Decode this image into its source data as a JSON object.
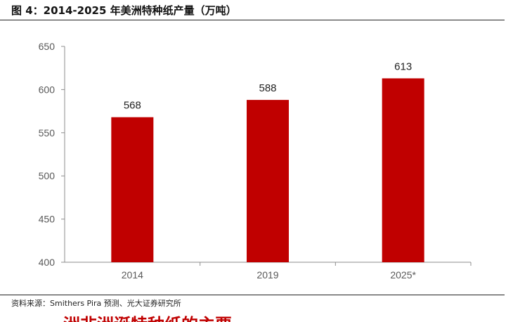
{
  "figure": {
    "title": "图 4：2014-2025 年美洲特种纸产量（万吨）",
    "source": "资料来源：Smithers Pira 预测、光大证券研究所",
    "cut_heading": "洲非洲诞特种纸的主要"
  },
  "chart_data": {
    "type": "bar",
    "title": "图 4：2014-2025 年美洲特种纸产量（万吨）",
    "categories": [
      "2014",
      "2019",
      "2025*"
    ],
    "values": [
      568,
      588,
      613
    ],
    "data_labels": [
      "568",
      "588",
      "613"
    ],
    "yticks": [
      "400",
      "450",
      "500",
      "550",
      "600",
      "650"
    ],
    "ylim": [
      400,
      650
    ],
    "ytick_step": 50,
    "bar_color": "#c00000",
    "axis_color": "#8c8c8c",
    "grid": false,
    "legend": "none",
    "xlabel": "",
    "ylabel": ""
  }
}
